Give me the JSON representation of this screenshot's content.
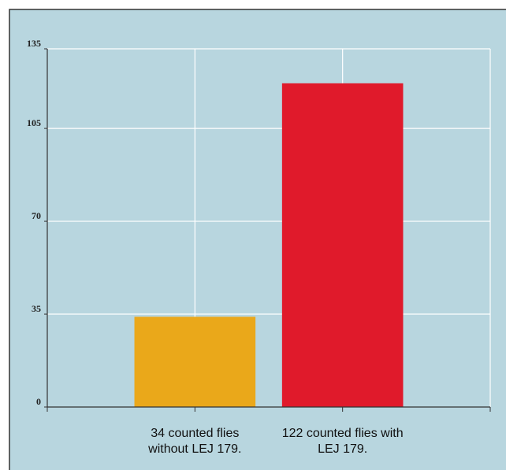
{
  "chart_data": {
    "type": "bar",
    "categories": [
      "34 counted flies without LEJ 179.",
      "122 counted flies with LEJ 179."
    ],
    "values": [
      34,
      122
    ],
    "colors": [
      "#eaa81a",
      "#e01a2b"
    ],
    "ylim": [
      0,
      135
    ],
    "yticks": [
      0,
      35,
      70,
      105,
      135
    ],
    "grid": true
  }
}
